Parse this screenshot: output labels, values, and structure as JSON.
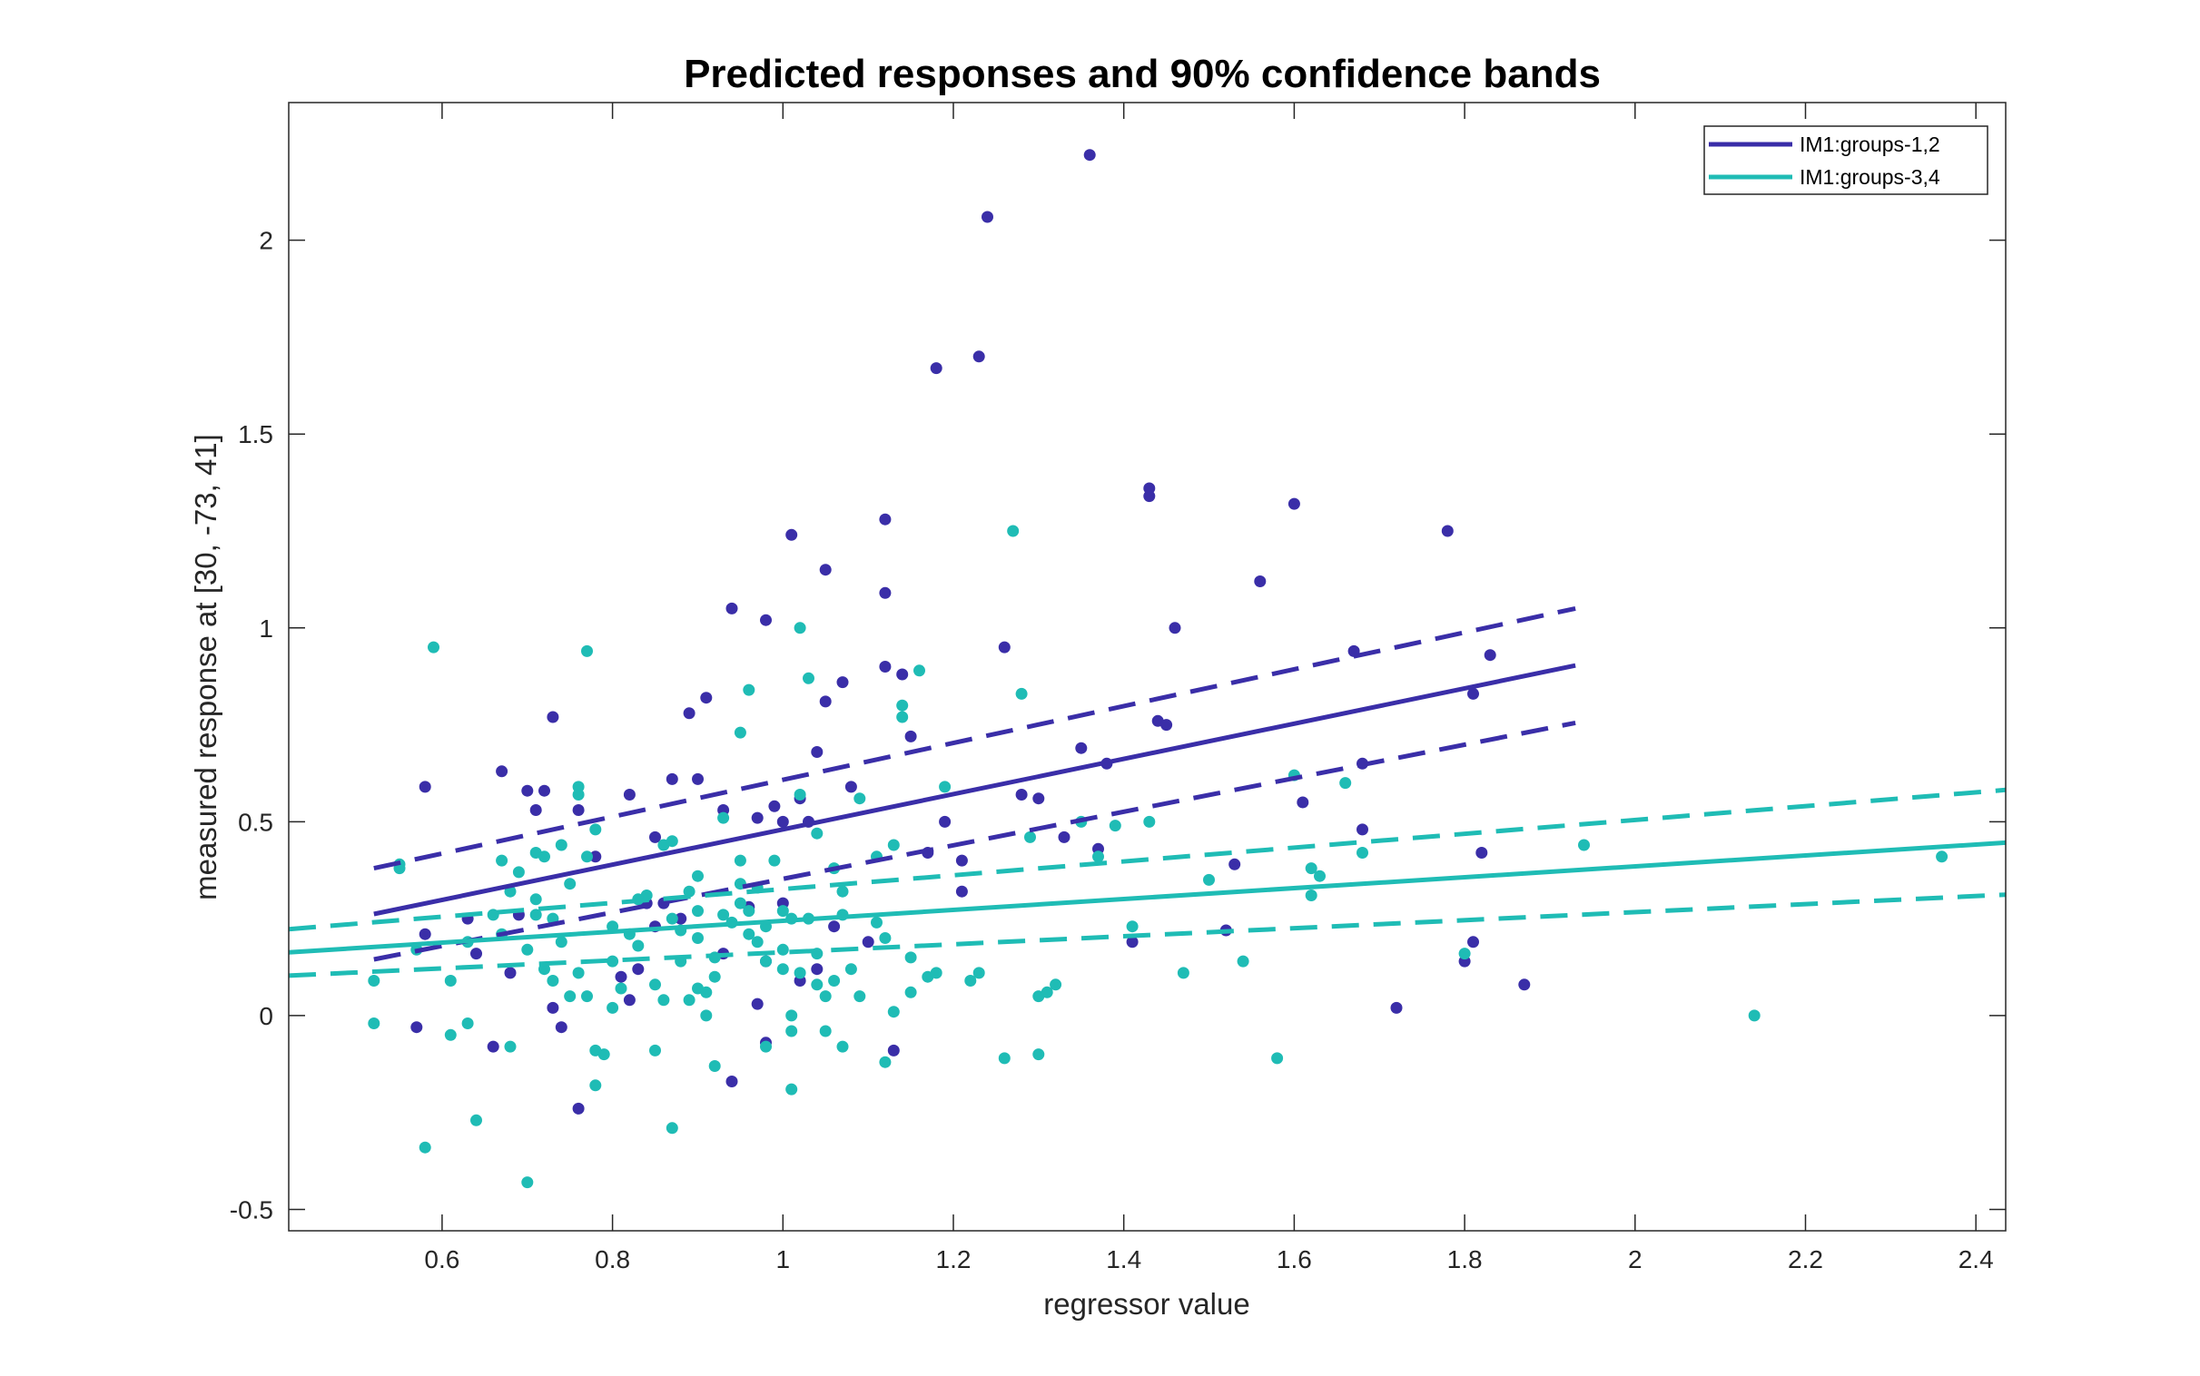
{
  "chart_data": {
    "type": "scatter",
    "title": "Predicted responses and 90% confidence bands",
    "xlabel": "regressor value",
    "ylabel": "measured response at [30, -73, 41]",
    "xlim": [
      0.42,
      2.435
    ],
    "ylim": [
      -0.555,
      2.355
    ],
    "xticks": [
      0.6,
      0.8,
      1,
      1.2,
      1.4,
      1.6,
      1.8,
      2,
      2.2,
      2.4
    ],
    "xtick_labels": [
      "0.6",
      "0.8",
      "1",
      "1.2",
      "1.4",
      "1.6",
      "1.8",
      "2",
      "2.2",
      "2.4"
    ],
    "yticks": [
      -0.5,
      0,
      0.5,
      1,
      1.5,
      2
    ],
    "ytick_labels": [
      "-0.5",
      "0",
      "0.5",
      "1",
      "1.5",
      "2"
    ],
    "grid": false,
    "legend_position": "top-right",
    "series": [
      {
        "name": "IM1:groups-1,2",
        "color": "#3a2ea8",
        "fit": {
          "x": [
            0.52,
            1.93
          ],
          "y": [
            0.262,
            0.903
          ]
        },
        "band_upper": {
          "x": [
            0.52,
            1.93
          ],
          "y": [
            0.38,
            1.05
          ]
        },
        "band_lower": {
          "x": [
            0.52,
            1.93
          ],
          "y": [
            0.145,
            0.755
          ]
        },
        "points": [
          [
            0.58,
            0.21
          ],
          [
            0.58,
            0.59
          ],
          [
            0.57,
            -0.03
          ],
          [
            0.64,
            0.16
          ],
          [
            0.66,
            -0.08
          ],
          [
            0.67,
            0.63
          ],
          [
            0.68,
            0.11
          ],
          [
            0.7,
            0.58
          ],
          [
            0.71,
            0.53
          ],
          [
            0.72,
            0.58
          ],
          [
            0.73,
            0.77
          ],
          [
            0.73,
            0.02
          ],
          [
            0.74,
            -0.03
          ],
          [
            0.76,
            -0.24
          ],
          [
            0.78,
            0.41
          ],
          [
            0.81,
            0.1
          ],
          [
            0.82,
            0.57
          ],
          [
            0.82,
            0.04
          ],
          [
            0.84,
            0.29
          ],
          [
            0.85,
            0.46
          ],
          [
            0.86,
            0.29
          ],
          [
            0.87,
            0.61
          ],
          [
            0.89,
            0.78
          ],
          [
            0.9,
            0.61
          ],
          [
            0.91,
            0.82
          ],
          [
            0.93,
            0.53
          ],
          [
            0.94,
            -0.17
          ],
          [
            0.94,
            1.05
          ],
          [
            0.96,
            0.28
          ],
          [
            0.97,
            0.03
          ],
          [
            0.97,
            0.51
          ],
          [
            0.98,
            0.14
          ],
          [
            0.98,
            -0.07
          ],
          [
            0.98,
            1.02
          ],
          [
            0.99,
            0.54
          ],
          [
            1.0,
            0.29
          ],
          [
            1.01,
            1.24
          ],
          [
            1.02,
            0.09
          ],
          [
            1.03,
            0.5
          ],
          [
            1.04,
            0.12
          ],
          [
            1.04,
            0.68
          ],
          [
            1.05,
            1.15
          ],
          [
            1.05,
            0.81
          ],
          [
            1.06,
            0.23
          ],
          [
            1.07,
            0.86
          ],
          [
            1.12,
            1.28
          ],
          [
            1.12,
            1.09
          ],
          [
            1.12,
            0.9
          ],
          [
            1.14,
            0.88
          ],
          [
            1.15,
            0.72
          ],
          [
            1.17,
            0.42
          ],
          [
            1.18,
            1.67
          ],
          [
            1.19,
            0.5
          ],
          [
            1.21,
            0.32
          ],
          [
            1.23,
            1.7
          ],
          [
            1.24,
            2.06
          ],
          [
            1.26,
            0.95
          ],
          [
            1.28,
            0.57
          ],
          [
            1.3,
            0.56
          ],
          [
            1.33,
            0.46
          ],
          [
            1.35,
            0.69
          ],
          [
            1.36,
            2.22
          ],
          [
            1.37,
            0.43
          ],
          [
            1.38,
            0.65
          ],
          [
            1.41,
            0.19
          ],
          [
            1.43,
            1.36
          ],
          [
            1.43,
            1.34
          ],
          [
            1.44,
            0.76
          ],
          [
            1.45,
            0.75
          ],
          [
            1.46,
            1.0
          ],
          [
            1.52,
            0.22
          ],
          [
            1.53,
            0.39
          ],
          [
            1.56,
            1.12
          ],
          [
            1.6,
            1.32
          ],
          [
            1.61,
            0.55
          ],
          [
            1.67,
            0.94
          ],
          [
            1.68,
            0.65
          ],
          [
            1.68,
            0.48
          ],
          [
            1.72,
            0.02
          ],
          [
            1.78,
            1.25
          ],
          [
            1.8,
            0.14
          ],
          [
            1.81,
            0.19
          ],
          [
            1.81,
            0.83
          ],
          [
            1.82,
            0.42
          ],
          [
            1.83,
            0.93
          ],
          [
            1.87,
            0.08
          ],
          [
            1.13,
            -0.09
          ],
          [
            1.1,
            0.19
          ],
          [
            1.21,
            0.4
          ],
          [
            1.02,
            0.56
          ],
          [
            0.83,
            0.12
          ],
          [
            0.76,
            0.53
          ],
          [
            0.63,
            0.25
          ],
          [
            0.69,
            0.26
          ],
          [
            0.88,
            0.25
          ],
          [
            1.0,
            0.5
          ],
          [
            0.93,
            0.16
          ],
          [
            0.85,
            0.23
          ],
          [
            1.08,
            0.59
          ]
        ]
      },
      {
        "name": "IM1:groups-3,4",
        "color": "#1fbcb5",
        "fit": {
          "x": [
            0.42,
            2.435
          ],
          "y": [
            0.163,
            0.446
          ]
        },
        "band_upper": {
          "x": [
            0.42,
            2.435
          ],
          "y": [
            0.223,
            0.582
          ]
        },
        "band_lower": {
          "x": [
            0.42,
            2.435
          ],
          "y": [
            0.103,
            0.312
          ]
        },
        "points": [
          [
            0.52,
            0.09
          ],
          [
            0.52,
            -0.02
          ],
          [
            0.55,
            0.39
          ],
          [
            0.55,
            0.38
          ],
          [
            0.58,
            -0.34
          ],
          [
            0.59,
            0.95
          ],
          [
            0.61,
            -0.05
          ],
          [
            0.61,
            0.09
          ],
          [
            0.63,
            -0.02
          ],
          [
            0.64,
            -0.27
          ],
          [
            0.66,
            0.26
          ],
          [
            0.67,
            0.4
          ],
          [
            0.68,
            0.32
          ],
          [
            0.68,
            -0.08
          ],
          [
            0.69,
            0.37
          ],
          [
            0.7,
            0.17
          ],
          [
            0.7,
            -0.43
          ],
          [
            0.71,
            0.42
          ],
          [
            0.71,
            0.3
          ],
          [
            0.72,
            0.41
          ],
          [
            0.72,
            0.12
          ],
          [
            0.73,
            0.09
          ],
          [
            0.73,
            0.25
          ],
          [
            0.74,
            0.44
          ],
          [
            0.75,
            0.05
          ],
          [
            0.75,
            0.34
          ],
          [
            0.76,
            0.59
          ],
          [
            0.76,
            0.57
          ],
          [
            0.76,
            0.11
          ],
          [
            0.77,
            0.94
          ],
          [
            0.77,
            0.41
          ],
          [
            0.78,
            0.48
          ],
          [
            0.78,
            -0.09
          ],
          [
            0.78,
            -0.18
          ],
          [
            0.79,
            -0.1
          ],
          [
            0.8,
            0.02
          ],
          [
            0.8,
            0.23
          ],
          [
            0.81,
            0.07
          ],
          [
            0.82,
            0.21
          ],
          [
            0.83,
            0.18
          ],
          [
            0.84,
            0.31
          ],
          [
            0.85,
            -0.09
          ],
          [
            0.86,
            0.04
          ],
          [
            0.86,
            0.44
          ],
          [
            0.87,
            0.25
          ],
          [
            0.87,
            -0.29
          ],
          [
            0.88,
            0.22
          ],
          [
            0.88,
            0.14
          ],
          [
            0.89,
            0.32
          ],
          [
            0.9,
            0.27
          ],
          [
            0.9,
            0.2
          ],
          [
            0.9,
            0.07
          ],
          [
            0.91,
            0.0
          ],
          [
            0.91,
            0.06
          ],
          [
            0.92,
            -0.13
          ],
          [
            0.92,
            0.15
          ],
          [
            0.92,
            0.1
          ],
          [
            0.93,
            0.51
          ],
          [
            0.93,
            0.26
          ],
          [
            0.94,
            0.24
          ],
          [
            0.95,
            0.4
          ],
          [
            0.95,
            0.73
          ],
          [
            0.96,
            0.84
          ],
          [
            0.96,
            0.27
          ],
          [
            0.96,
            0.21
          ],
          [
            0.97,
            0.19
          ],
          [
            0.97,
            0.33
          ],
          [
            0.98,
            0.23
          ],
          [
            0.98,
            -0.08
          ],
          [
            0.99,
            0.4
          ],
          [
            1.0,
            0.27
          ],
          [
            1.0,
            0.17
          ],
          [
            1.0,
            0.12
          ],
          [
            1.01,
            0.0
          ],
          [
            1.01,
            -0.19
          ],
          [
            1.01,
            -0.04
          ],
          [
            1.02,
            0.11
          ],
          [
            1.02,
            1.0
          ],
          [
            1.02,
            0.57
          ],
          [
            1.03,
            0.87
          ],
          [
            1.03,
            0.25
          ],
          [
            1.04,
            0.08
          ],
          [
            1.04,
            0.47
          ],
          [
            1.05,
            -0.04
          ],
          [
            1.05,
            0.05
          ],
          [
            1.06,
            0.09
          ],
          [
            1.06,
            0.38
          ],
          [
            1.07,
            0.32
          ],
          [
            1.07,
            -0.08
          ],
          [
            1.08,
            0.12
          ],
          [
            1.09,
            0.05
          ],
          [
            1.09,
            0.56
          ],
          [
            1.11,
            0.41
          ],
          [
            1.11,
            0.24
          ],
          [
            1.12,
            -0.12
          ],
          [
            1.13,
            0.44
          ],
          [
            1.13,
            0.01
          ],
          [
            1.14,
            0.8
          ],
          [
            1.14,
            0.77
          ],
          [
            1.15,
            0.06
          ],
          [
            1.16,
            0.89
          ],
          [
            1.17,
            0.1
          ],
          [
            1.18,
            0.11
          ],
          [
            1.19,
            0.59
          ],
          [
            1.22,
            0.09
          ],
          [
            1.23,
            0.11
          ],
          [
            1.26,
            -0.11
          ],
          [
            1.27,
            1.25
          ],
          [
            1.28,
            0.83
          ],
          [
            1.29,
            0.46
          ],
          [
            1.3,
            0.05
          ],
          [
            1.3,
            -0.1
          ],
          [
            1.31,
            0.06
          ],
          [
            1.32,
            0.08
          ],
          [
            1.35,
            0.5
          ],
          [
            1.37,
            0.41
          ],
          [
            1.39,
            0.49
          ],
          [
            1.41,
            0.23
          ],
          [
            1.43,
            0.5
          ],
          [
            1.47,
            0.11
          ],
          [
            1.5,
            0.35
          ],
          [
            1.54,
            0.14
          ],
          [
            1.58,
            -0.11
          ],
          [
            1.6,
            0.62
          ],
          [
            1.62,
            0.31
          ],
          [
            1.62,
            0.38
          ],
          [
            1.63,
            0.36
          ],
          [
            1.66,
            0.6
          ],
          [
            1.68,
            0.42
          ],
          [
            1.8,
            0.16
          ],
          [
            1.94,
            0.44
          ],
          [
            2.14,
            0.0
          ],
          [
            2.36,
            0.41
          ],
          [
            0.57,
            0.17
          ],
          [
            0.63,
            0.19
          ],
          [
            0.71,
            0.26
          ],
          [
            0.77,
            0.05
          ],
          [
            0.87,
            0.45
          ],
          [
            0.9,
            0.36
          ],
          [
            0.95,
            0.29
          ],
          [
            1.07,
            0.26
          ],
          [
            0.98,
            0.14
          ],
          [
            0.83,
            0.3
          ],
          [
            0.89,
            0.04
          ],
          [
            1.01,
            0.25
          ],
          [
            0.74,
            0.19
          ],
          [
            0.8,
            0.14
          ],
          [
            1.12,
            0.2
          ],
          [
            0.85,
            0.08
          ],
          [
            1.04,
            0.16
          ],
          [
            0.95,
            0.34
          ],
          [
            0.67,
            0.21
          ],
          [
            1.15,
            0.15
          ]
        ]
      }
    ]
  }
}
